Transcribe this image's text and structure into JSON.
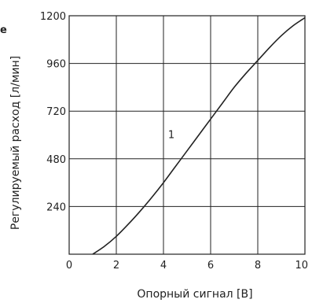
{
  "chart_data": {
    "type": "line",
    "corner_label": "e",
    "xlabel": "Опорный сигнал [В]",
    "ylabel": "Регулируемый расход [л/мин]",
    "xlim": [
      0,
      10
    ],
    "ylim": [
      0,
      1200
    ],
    "x_ticks": [
      "0",
      "2",
      "4",
      "6",
      "8",
      "10"
    ],
    "y_ticks": [
      "240",
      "480",
      "720",
      "960",
      "1200"
    ],
    "grid": true,
    "series": [
      {
        "name": "1",
        "x": [
          1.0,
          1.5,
          2.0,
          2.5,
          3.0,
          3.5,
          4.0,
          4.5,
          5.0,
          5.5,
          6.0,
          6.5,
          7.0,
          7.5,
          8.0,
          8.5,
          9.0,
          9.5,
          10.0
        ],
        "y": [
          0,
          40,
          90,
          150,
          215,
          285,
          360,
          440,
          520,
          600,
          680,
          760,
          840,
          910,
          975,
          1040,
          1100,
          1150,
          1190
        ]
      }
    ],
    "annotations": [
      {
        "text": "1",
        "x": 5.2,
        "y": 640
      }
    ]
  }
}
